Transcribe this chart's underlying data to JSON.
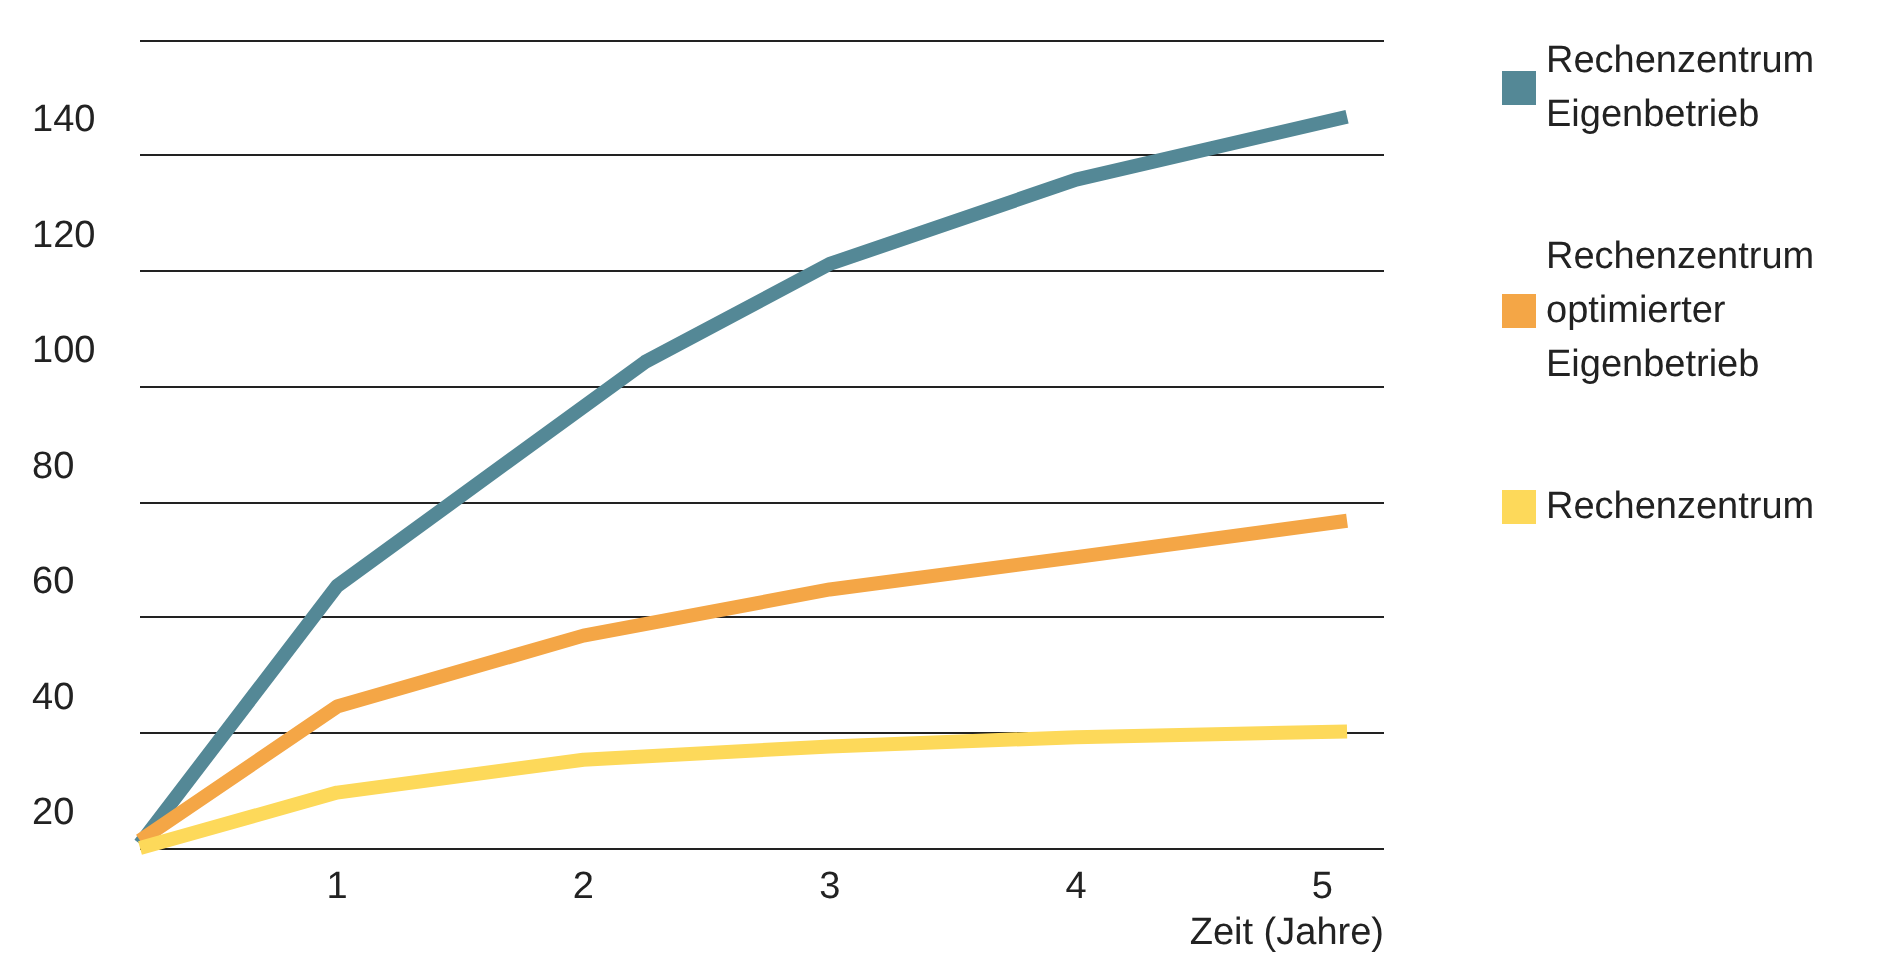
{
  "chart_data": {
    "type": "line",
    "xlabel": "Zeit (Jahre)",
    "xlim": [
      0.2,
      5.25
    ],
    "xticks": [
      1,
      2,
      3,
      4,
      5
    ],
    "ylim": [
      20,
      160
    ],
    "yticks": [
      20,
      40,
      60,
      80,
      100,
      120,
      140,
      {
        "value": 160,
        "label": null
      }
    ],
    "grid": "y",
    "legend": "top right",
    "marker": "none",
    "line_style": "solid",
    "series": [
      {
        "name": "Rechenzentrum Eigenbetrieb",
        "color": "#548896",
        "x": [
          0.2,
          1,
          2.25,
          3,
          4,
          5.1
        ],
        "values": [
          20.7,
          65.4,
          104.2,
          121.2,
          135.8,
          146.7
        ]
      },
      {
        "name": "Rechenzentrum optimierter Eigenbetrieb",
        "color": "#f4a646",
        "x": [
          0.2,
          1,
          2,
          3,
          4,
          5.1
        ],
        "values": [
          21.3,
          44.5,
          56.8,
          64.8,
          70.4,
          76.7
        ]
      },
      {
        "name": "Rechenzentrum",
        "color": "#fdd95a",
        "x": [
          0.2,
          1,
          2,
          3,
          4,
          5.1
        ],
        "values": [
          20,
          29.6,
          35.3,
          37.6,
          39.2,
          40.2
        ]
      }
    ]
  }
}
